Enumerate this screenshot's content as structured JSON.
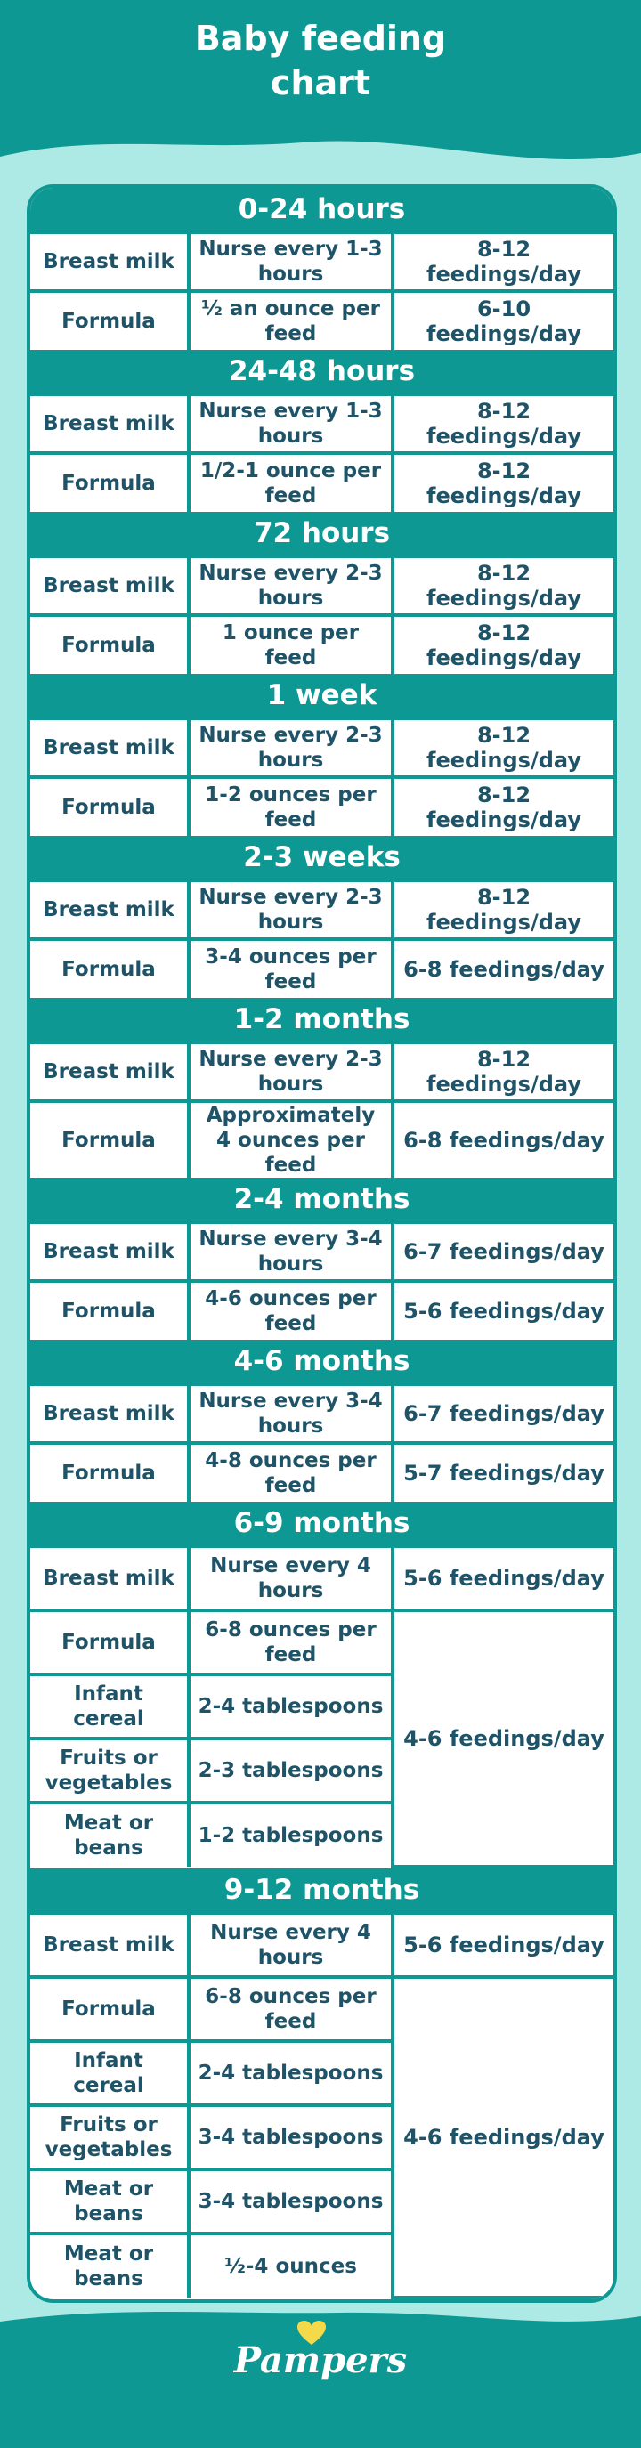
{
  "page": {
    "title": "Baby feeding\nchart"
  },
  "colors": {
    "teal": "#0e9893",
    "mint_background": "#ade9e5",
    "text": "#1f5468",
    "logo_heart": "#f4d94a"
  },
  "sections": [
    {
      "title": "0-24 hours",
      "rows": [
        {
          "label": "Breast milk",
          "amount": "Nurse every 1-3 hours",
          "frequency": "8-12 feedings/day"
        },
        {
          "label": "Formula",
          "amount": "½ an ounce per feed",
          "frequency": "6-10 feedings/day"
        }
      ]
    },
    {
      "title": "24-48 hours",
      "rows": [
        {
          "label": "Breast milk",
          "amount": "Nurse every 1-3 hours",
          "frequency": "8-12 feedings/day"
        },
        {
          "label": "Formula",
          "amount": "1/2-1 ounce per feed",
          "frequency": "8-12 feedings/day"
        }
      ]
    },
    {
      "title": "72 hours",
      "rows": [
        {
          "label": "Breast milk",
          "amount": "Nurse every 2-3 hours",
          "frequency": "8-12 feedings/day"
        },
        {
          "label": "Formula",
          "amount": "1 ounce per feed",
          "frequency": "8-12 feedings/day"
        }
      ]
    },
    {
      "title": "1 week",
      "rows": [
        {
          "label": "Breast milk",
          "amount": "Nurse every 2-3 hours",
          "frequency": "8-12 feedings/day"
        },
        {
          "label": "Formula",
          "amount": "1-2 ounces per feed",
          "frequency": "8-12 feedings/day"
        }
      ]
    },
    {
      "title": "2-3 weeks",
      "rows": [
        {
          "label": "Breast milk",
          "amount": "Nurse every 2-3 hours",
          "frequency": "8-12 feedings/day"
        },
        {
          "label": "Formula",
          "amount": "3-4 ounces per feed",
          "frequency": "6-8 feedings/day"
        }
      ]
    },
    {
      "title": "1-2 months",
      "rows": [
        {
          "label": "Breast milk",
          "amount": "Nurse every 2-3 hours",
          "frequency": "8-12 feedings/day"
        },
        {
          "label": "Formula",
          "amount": "Approximately 4 ounces per feed",
          "frequency": "6-8 feedings/day"
        }
      ]
    },
    {
      "title": "2-4 months",
      "rows": [
        {
          "label": "Breast milk",
          "amount": "Nurse every 3-4 hours",
          "frequency": "6-7 feedings/day"
        },
        {
          "label": "Formula",
          "amount": "4-6 ounces per feed",
          "frequency": "5-6 feedings/day"
        }
      ]
    },
    {
      "title": "4-6 months",
      "rows": [
        {
          "label": "Breast milk",
          "amount": "Nurse every 3-4 hours",
          "frequency": "6-7 feedings/day"
        },
        {
          "label": "Formula",
          "amount": "4-8 ounces per feed",
          "frequency": "5-7 feedings/day"
        }
      ]
    },
    {
      "title": "6-9 months",
      "shared_frequency": "4-6 feedings/day",
      "rows": [
        {
          "label": "Breast milk",
          "amount": "Nurse every 4 hours",
          "frequency": "5-6 feedings/day"
        },
        {
          "label": "Formula",
          "amount": "6-8 ounces per feed"
        },
        {
          "label": "Infant cereal",
          "amount": "2-4 tablespoons"
        },
        {
          "label": "Fruits or vegetables",
          "amount": "2-3 tablespoons"
        },
        {
          "label": "Meat or beans",
          "amount": "1-2 tablespoons"
        }
      ]
    },
    {
      "title": "9-12 months",
      "shared_frequency": "4-6 feedings/day",
      "rows": [
        {
          "label": "Breast milk",
          "amount": "Nurse every 4 hours",
          "frequency": "5-6 feedings/day"
        },
        {
          "label": "Formula",
          "amount": "6-8 ounces per feed"
        },
        {
          "label": "Infant cereal",
          "amount": "2-4 tablespoons"
        },
        {
          "label": "Fruits or vegetables",
          "amount": "3-4 tablespoons"
        },
        {
          "label": "Meat or beans",
          "amount": "3-4 tablespoons"
        },
        {
          "label": "Meat or beans",
          "amount": "½-4 ounces"
        }
      ]
    }
  ],
  "footer": {
    "logo": "Pampers"
  }
}
